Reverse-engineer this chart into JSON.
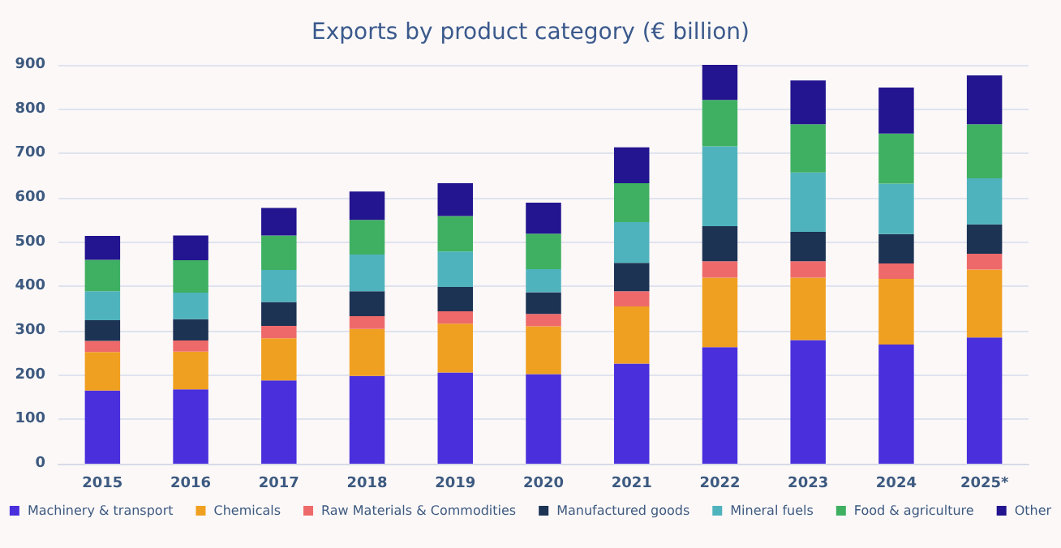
{
  "chart_data": {
    "type": "bar",
    "title": "Exports by product category (€ billion)",
    "stacked": true,
    "grid": "y",
    "legend": "bottom",
    "categories": [
      "2015",
      "2016",
      "2017",
      "2018",
      "2019",
      "2020",
      "2021",
      "2022",
      "2023",
      "2024",
      "2025*"
    ],
    "ylim": [
      0,
      900
    ],
    "yticks": [
      0,
      100,
      200,
      300,
      400,
      500,
      600,
      700,
      800,
      900
    ],
    "series": [
      {
        "name": "Machinery & transport",
        "color": "#4a2fdc",
        "values": [
          165,
          168,
          188,
          198,
          206,
          202,
          226,
          263,
          279,
          269,
          285
        ]
      },
      {
        "name": "Chemicals",
        "color": "#f0a020",
        "values": [
          87,
          85,
          95,
          106,
          110,
          108,
          129,
          157,
          141,
          148,
          153
        ]
      },
      {
        "name": "Raw Materials & Commodities",
        "color": "#ee6a6a",
        "values": [
          25,
          25,
          28,
          29,
          28,
          28,
          34,
          37,
          37,
          35,
          36
        ]
      },
      {
        "name": "Manufactured goods",
        "color": "#1c3354",
        "values": [
          47,
          48,
          54,
          56,
          55,
          49,
          64,
          79,
          66,
          66,
          66
        ]
      },
      {
        "name": "Mineral fuels",
        "color": "#4fb3bd",
        "values": [
          65,
          60,
          72,
          83,
          80,
          52,
          92,
          180,
          134,
          114,
          104
        ]
      },
      {
        "name": "Food & agriculture",
        "color": "#3fb062",
        "values": [
          71,
          73,
          78,
          78,
          80,
          80,
          88,
          105,
          109,
          113,
          122
        ]
      },
      {
        "name": "Other",
        "color": "#23148f",
        "values": [
          54,
          56,
          62,
          64,
          74,
          70,
          81,
          79,
          99,
          104,
          110
        ]
      }
    ]
  }
}
